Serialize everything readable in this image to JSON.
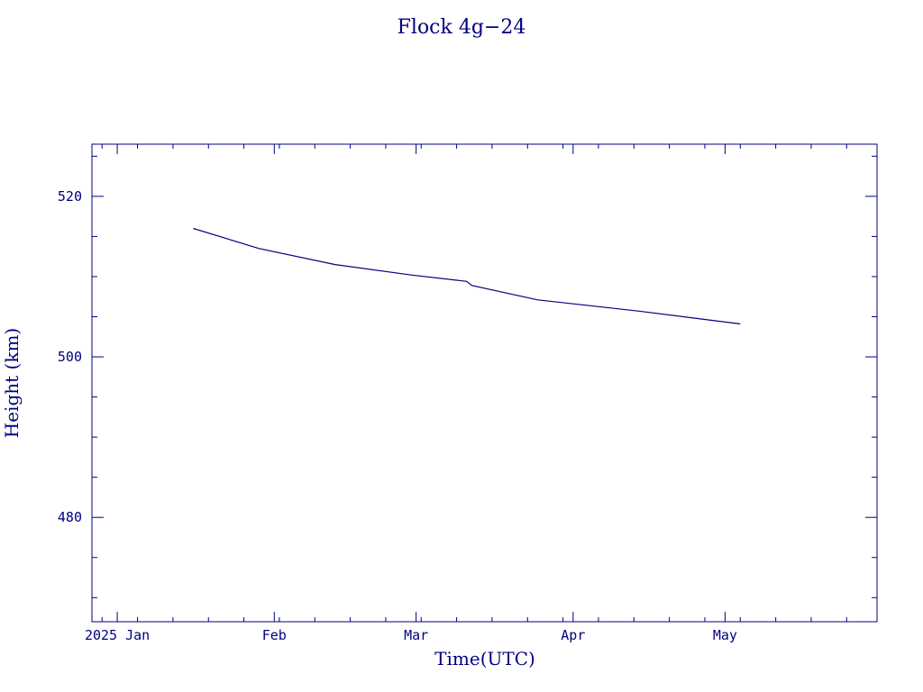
{
  "chart_data": {
    "type": "line",
    "title": "Flock 4g−24",
    "xlabel": "Time(UTC)",
    "ylabel": "Height (km)",
    "x_ticks": [
      {
        "label": "2025 Jan",
        "date": "2025-01-01"
      },
      {
        "label": "Feb",
        "date": "2025-02-01"
      },
      {
        "label": "Mar",
        "date": "2025-03-01"
      },
      {
        "label": "Apr",
        "date": "2025-04-01"
      },
      {
        "label": "May",
        "date": "2025-05-01"
      }
    ],
    "y_ticks": [
      480,
      500,
      520
    ],
    "xlim": [
      "2024-12-27",
      "2025-05-31"
    ],
    "ylim": [
      467.0,
      526.5
    ],
    "grid": false,
    "color": "#000080",
    "series": [
      {
        "x": [
          "2025-01-16",
          "2025-01-29",
          "2025-02-13",
          "2025-02-28",
          "2025-03-11",
          "2025-03-12",
          "2025-03-25",
          "2025-04-14",
          "2025-05-04"
        ],
        "values": [
          516.0,
          513.5,
          511.5,
          510.2,
          509.4,
          508.9,
          507.1,
          505.7,
          504.1
        ]
      }
    ]
  }
}
